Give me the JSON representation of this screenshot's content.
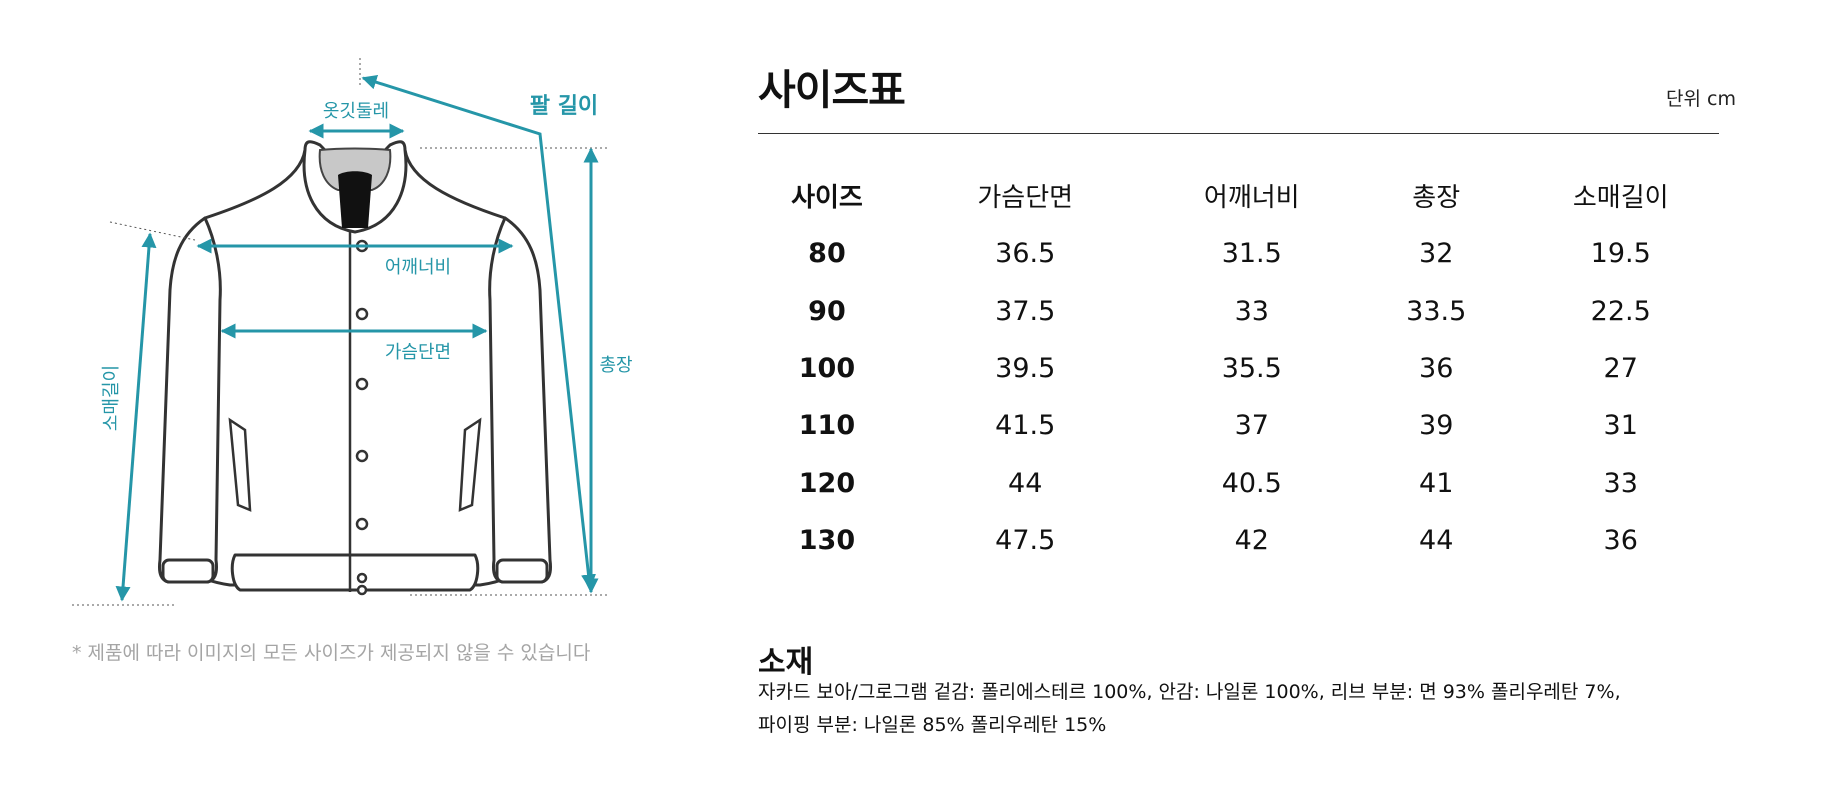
{
  "diagram": {
    "labels": {
      "collar": "옷깃둘레",
      "arm_length": "팔 길이",
      "shoulder": "어깨너비",
      "chest": "가슴단면",
      "total_length": "총장",
      "sleeve_length": "소매길이"
    },
    "accent_color": "#2596a8"
  },
  "note": "* 제품에 따라 이미지의 모든 사이즈가 제공되지 않을 수 있습니다",
  "size_table": {
    "title": "사이즈표",
    "unit": "단위 cm",
    "headers": [
      "사이즈",
      "가슴단면",
      "어깨너비",
      "총장",
      "소매길이"
    ],
    "rows": [
      [
        "80",
        "36.5",
        "31.5",
        "32",
        "19.5"
      ],
      [
        "90",
        "37.5",
        "33",
        "33.5",
        "22.5"
      ],
      [
        "100",
        "39.5",
        "35.5",
        "36",
        "27"
      ],
      [
        "110",
        "41.5",
        "37",
        "39",
        "31"
      ],
      [
        "120",
        "44",
        "40.5",
        "41",
        "33"
      ],
      [
        "130",
        "47.5",
        "42",
        "44",
        "36"
      ]
    ]
  },
  "material": {
    "title": "소재",
    "line1": "자카드 보아/그로그램 겉감: 폴리에스테르 100%, 안감: 나일론 100%, 리브 부분: 면 93% 폴리우레탄 7%,",
    "line2": "파이핑 부분: 나일론 85% 폴리우레탄 15%"
  }
}
